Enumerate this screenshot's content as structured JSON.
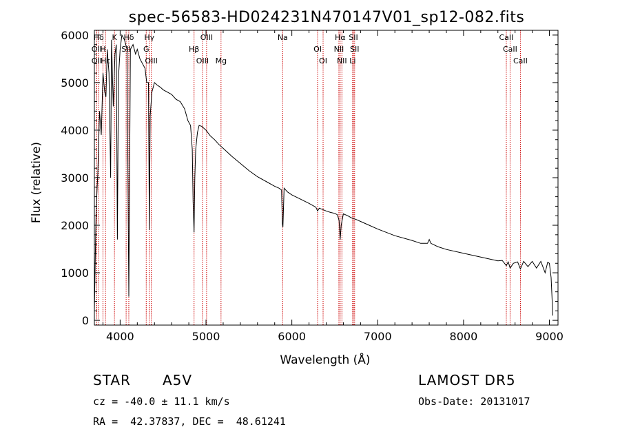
{
  "chart_data": {
    "type": "line",
    "title": "spec-56583-HD024231N470147V01_sp12-082.fits",
    "xlabel": "Wavelength (Å)",
    "ylabel": "Flux (relative)",
    "xlim": [
      3700,
      9100
    ],
    "ylim": [
      -100,
      6100
    ],
    "xticks": [
      4000,
      5000,
      6000,
      7000,
      8000,
      9000
    ],
    "yticks": [
      0,
      1000,
      2000,
      3000,
      4000,
      5000,
      6000
    ],
    "grid": false,
    "line_color": "#000000",
    "marker_color": "#cc0000",
    "series": [
      {
        "x": [
          3700,
          3720,
          3740,
          3760,
          3780,
          3800,
          3820,
          3835,
          3850,
          3870,
          3889,
          3900,
          3920,
          3940,
          3955,
          3968,
          3980,
          4000,
          4020,
          4050,
          4080,
          4101,
          4120,
          4150,
          4180,
          4200,
          4230,
          4260,
          4290,
          4310,
          4330,
          4340,
          4350,
          4370,
          4400,
          4430,
          4470,
          4500,
          4550,
          4600,
          4650,
          4700,
          4750,
          4790,
          4820,
          4840,
          4850,
          4861,
          4870,
          4880,
          4900,
          4920,
          4950,
          5000,
          5050,
          5100,
          5150,
          5200,
          5300,
          5400,
          5500,
          5600,
          5700,
          5800,
          5850,
          5880,
          5890,
          5896,
          5910,
          5950,
          6000,
          6100,
          6200,
          6280,
          6300,
          6320,
          6400,
          6450,
          6500,
          6530,
          6550,
          6563,
          6575,
          6600,
          6650,
          6700,
          6750,
          6800,
          6900,
          7000,
          7200,
          7400,
          7500,
          7580,
          7600,
          7620,
          7700,
          7800,
          8000,
          8200,
          8400,
          8450,
          8498,
          8520,
          8542,
          8580,
          8630,
          8662,
          8700,
          8750,
          8800,
          8850,
          8900,
          8950,
          8980,
          9000,
          9020,
          9040
        ],
        "y": [
          200,
          2300,
          3100,
          4400,
          3900,
          5200,
          4800,
          4700,
          5700,
          5200,
          3000,
          5900,
          4500,
          5600,
          5800,
          1700,
          5100,
          5700,
          6000,
          5900,
          5700,
          500,
          5700,
          5800,
          5600,
          5700,
          5500,
          5400,
          5300,
          5000,
          5000,
          1900,
          4300,
          4800,
          5000,
          4950,
          4900,
          4850,
          4800,
          4750,
          4650,
          4600,
          4450,
          4200,
          4100,
          3600,
          2500,
          1850,
          3000,
          3600,
          3950,
          4100,
          4080,
          4000,
          3880,
          3800,
          3700,
          3620,
          3450,
          3300,
          3150,
          3020,
          2920,
          2820,
          2780,
          2740,
          2030,
          1960,
          2780,
          2700,
          2640,
          2550,
          2460,
          2380,
          2300,
          2360,
          2300,
          2270,
          2250,
          2220,
          2100,
          1700,
          2000,
          2240,
          2200,
          2150,
          2120,
          2080,
          2000,
          1920,
          1780,
          1680,
          1620,
          1620,
          1700,
          1620,
          1550,
          1490,
          1410,
          1330,
          1250,
          1260,
          1150,
          1230,
          1100,
          1200,
          1230,
          1080,
          1240,
          1130,
          1240,
          1100,
          1240,
          1000,
          1220,
          1200,
          900,
          100
        ]
      }
    ],
    "lines": [
      {
        "label": "Hδ",
        "x": 3750
      },
      {
        "label": "OII",
        "x": 3727
      },
      {
        "label": "OII",
        "x": 3727
      },
      {
        "label": "K",
        "x": 3934
      },
      {
        "label": "H",
        "x": 3800
      },
      {
        "label": "Hε",
        "x": 3830
      },
      {
        "label": "Hδ",
        "x": 4101
      },
      {
        "label": "SII",
        "x": 4070
      },
      {
        "label": "OIII",
        "x": 4363
      },
      {
        "label": "Hγ",
        "x": 4340
      },
      {
        "label": "G",
        "x": 4304
      },
      {
        "label": "OIII",
        "x": 4959
      },
      {
        "label": "OIII",
        "x": 5007
      },
      {
        "label": "Hβ",
        "x": 4861
      },
      {
        "label": "Mg",
        "x": 5175
      },
      {
        "label": "Na",
        "x": 5893
      },
      {
        "label": "OI",
        "x": 6300
      },
      {
        "label": "OI",
        "x": 6364
      },
      {
        "label": "Hα",
        "x": 6563
      },
      {
        "label": "NII",
        "x": 6548
      },
      {
        "label": "NII",
        "x": 6583
      },
      {
        "label": "SII",
        "x": 6717
      },
      {
        "label": "SII",
        "x": 6731
      },
      {
        "label": "Li",
        "x": 6708
      },
      {
        "label": "CaII",
        "x": 8498
      },
      {
        "label": "CaII",
        "x": 8542
      },
      {
        "label": "CaII",
        "x": 8662
      }
    ]
  },
  "info": {
    "class_label": "STAR",
    "subclass": "A5V",
    "survey": "LAMOST DR5",
    "redshift": "cz = -40.0 ± 11.1 km/s",
    "obs_date": "Obs-Date: 20131017",
    "coords": "RA =  42.37837, DEC =  48.61241"
  }
}
